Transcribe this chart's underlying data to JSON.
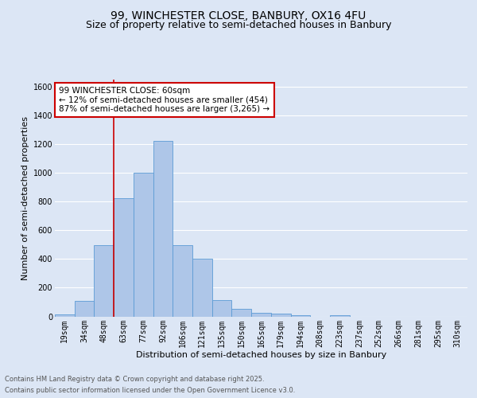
{
  "title1": "99, WINCHESTER CLOSE, BANBURY, OX16 4FU",
  "title2": "Size of property relative to semi-detached houses in Banbury",
  "xlabel": "Distribution of semi-detached houses by size in Banbury",
  "ylabel": "Number of semi-detached properties",
  "footer1": "Contains HM Land Registry data © Crown copyright and database right 2025.",
  "footer2": "Contains public sector information licensed under the Open Government Licence v3.0.",
  "annotation_title": "99 WINCHESTER CLOSE: 60sqm",
  "annotation_line1": "← 12% of semi-detached houses are smaller (454)",
  "annotation_line2": "87% of semi-detached houses are larger (3,265) →",
  "bar_labels": [
    "19sqm",
    "34sqm",
    "48sqm",
    "63sqm",
    "77sqm",
    "92sqm",
    "106sqm",
    "121sqm",
    "135sqm",
    "150sqm",
    "165sqm",
    "179sqm",
    "194sqm",
    "208sqm",
    "223sqm",
    "237sqm",
    "252sqm",
    "266sqm",
    "281sqm",
    "295sqm",
    "310sqm"
  ],
  "bar_values": [
    15,
    110,
    495,
    825,
    1000,
    1225,
    495,
    400,
    115,
    55,
    25,
    20,
    10,
    0,
    10,
    0,
    0,
    0,
    0,
    0,
    0
  ],
  "bar_color": "#aec6e8",
  "bar_edge_color": "#5b9bd5",
  "ylim": [
    0,
    1650
  ],
  "yticks": [
    0,
    200,
    400,
    600,
    800,
    1000,
    1200,
    1400,
    1600
  ],
  "background_color": "#dce6f5",
  "plot_bg_color": "#dce6f5",
  "grid_color": "#ffffff",
  "annotation_box_color": "#ffffff",
  "annotation_box_edge": "#cc0000",
  "red_line_color": "#cc0000",
  "title_fontsize": 10,
  "subtitle_fontsize": 9,
  "axis_label_fontsize": 8,
  "tick_fontsize": 7,
  "annotation_fontsize": 7.5,
  "footer_fontsize": 6
}
